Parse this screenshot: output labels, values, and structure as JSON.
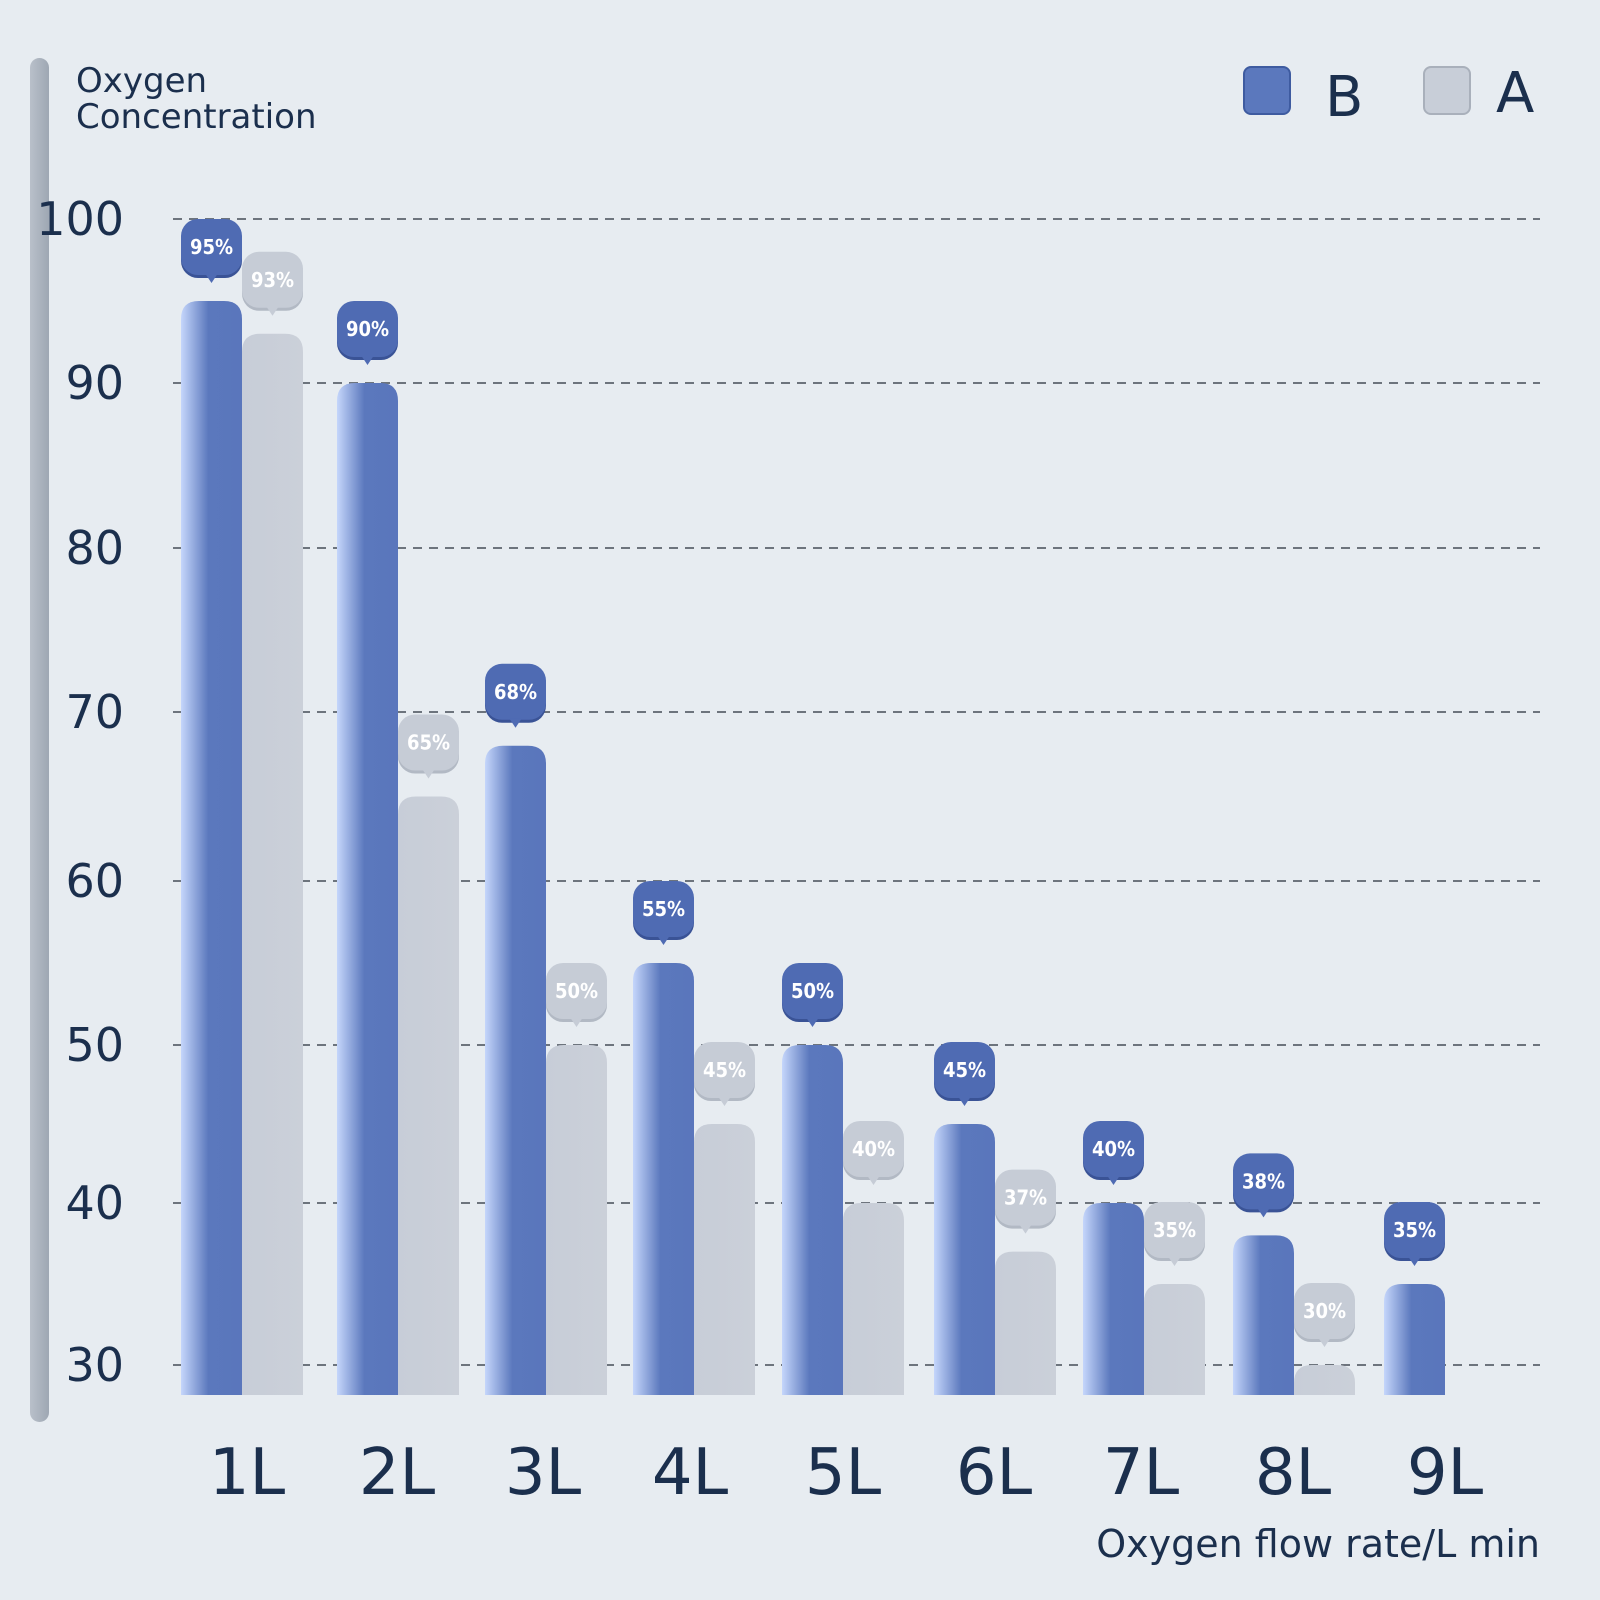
{
  "chart_data": {
    "type": "bar",
    "ylabel_lines": [
      "Oxygen",
      "Concentration"
    ],
    "xlabel": "Oxygen flow rate/L min",
    "categories": [
      "1L",
      "2L",
      "3L",
      "4L",
      "5L",
      "6L",
      "7L",
      "8L",
      "9L"
    ],
    "yticks": [
      30,
      40,
      50,
      60,
      70,
      80,
      90,
      100
    ],
    "series": [
      {
        "name": "B",
        "color": "#5b78bd",
        "values": [
          95,
          90,
          68,
          55,
          50,
          45,
          40,
          38,
          35
        ],
        "labels": [
          "95%",
          "90%",
          "68%",
          "55%",
          "50%",
          "45%",
          "40%",
          "38%",
          "35%"
        ]
      },
      {
        "name": "A",
        "color": "#c8ced8",
        "values": [
          93,
          65,
          50,
          45,
          40,
          37,
          35,
          30,
          null
        ],
        "labels": [
          "93%",
          "65%",
          "50%",
          "45%",
          "40%",
          "37%",
          "35%",
          "30%",
          null
        ]
      }
    ],
    "legend_position": "top-right",
    "grid": true,
    "grid_style": "dashed"
  }
}
